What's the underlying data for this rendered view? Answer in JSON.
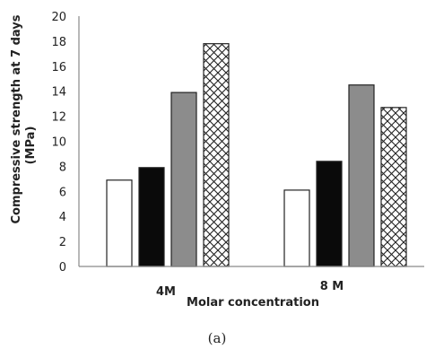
{
  "chart_data": {
    "type": "bar",
    "categories": [
      "4M",
      "8 M"
    ],
    "series": [
      {
        "values": [
          6.9,
          6.1
        ],
        "fill": "white"
      },
      {
        "values": [
          7.9,
          8.4
        ],
        "fill": "black"
      },
      {
        "values": [
          13.9,
          14.5
        ],
        "fill": "gray"
      },
      {
        "values": [
          17.8,
          12.7
        ],
        "fill": "crosshatch"
      }
    ],
    "xlabel": "Molar concentration",
    "ylabel_line1": "Compressive strength at 7 days",
    "ylabel_line2": "(MPa)",
    "ylim": [
      0,
      20
    ],
    "yticks": [
      "0",
      "2",
      "4",
      "6",
      "8",
      "10",
      "12",
      "14",
      "16",
      "18",
      "20"
    ],
    "legend": "none",
    "grid": false
  },
  "caption": "(a)",
  "colors": {
    "bar_stroke": "#222222",
    "white_fill": "#ffffff",
    "black_fill": "#0a0a0a",
    "gray_fill": "#8c8c8c",
    "axis": "#8a8a8a"
  }
}
